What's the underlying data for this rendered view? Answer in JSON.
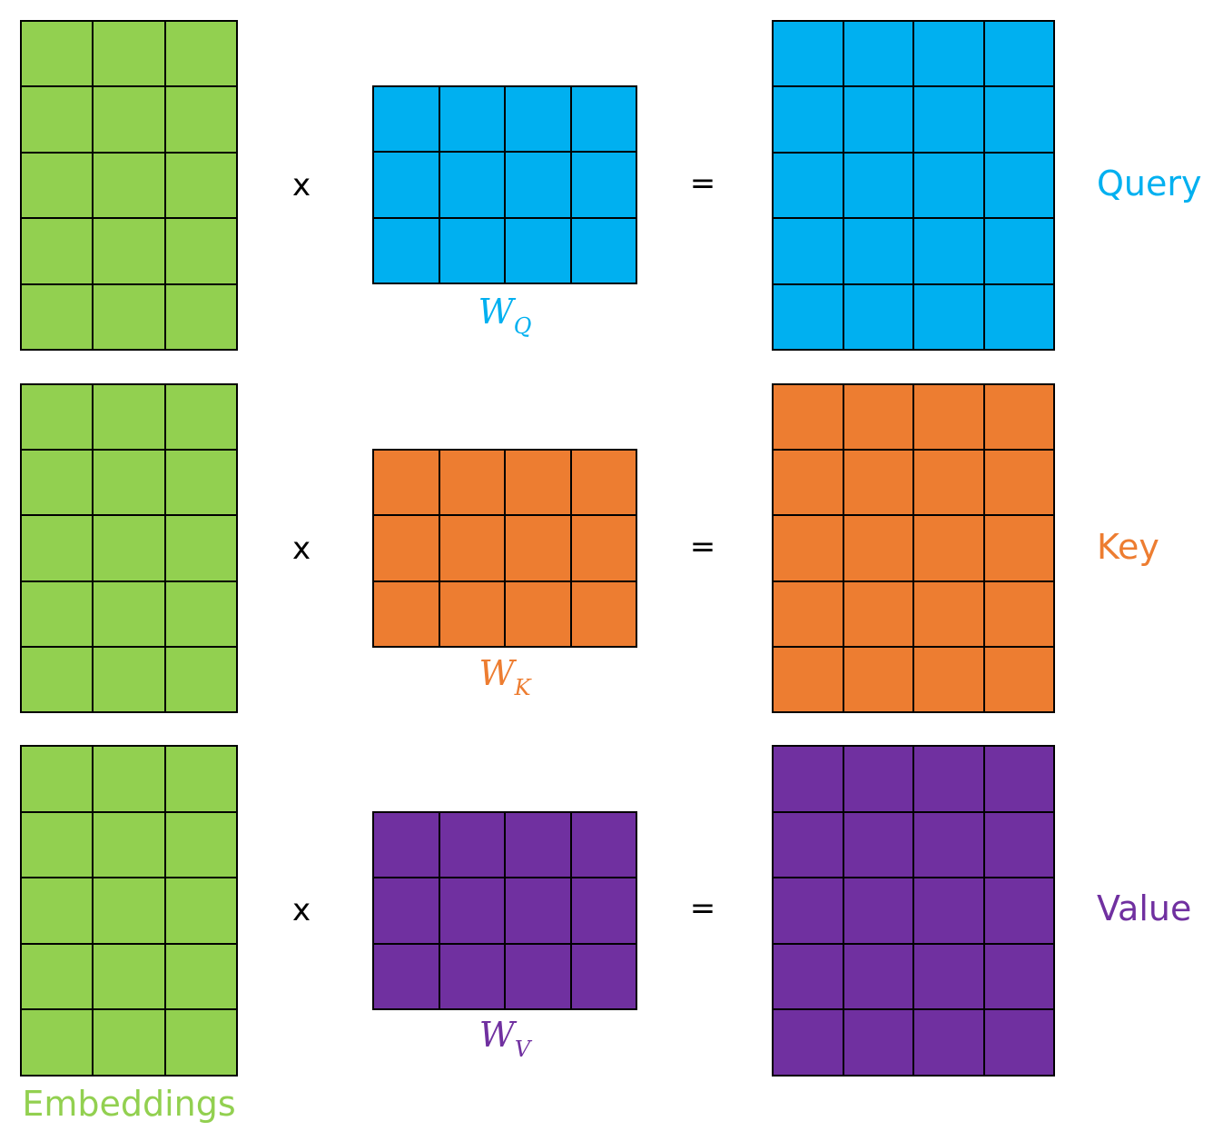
{
  "colors": {
    "embedding": "#92d050",
    "query": "#00b0f0",
    "key": "#ed7d31",
    "value": "#7030a0"
  },
  "embeddings_label": "Embeddings",
  "rows": [
    {
      "id": "query",
      "multiply_symbol": "x",
      "equals_symbol": "=",
      "weight_label_base": "W",
      "weight_label_sub": "Q",
      "output_label": "Query"
    },
    {
      "id": "key",
      "multiply_symbol": "x",
      "equals_symbol": "=",
      "weight_label_base": "W",
      "weight_label_sub": "K",
      "output_label": "Key"
    },
    {
      "id": "value",
      "multiply_symbol": "x",
      "equals_symbol": "=",
      "weight_label_base": "W",
      "weight_label_sub": "V",
      "output_label": "Value"
    }
  ],
  "matrix_shapes": {
    "embedding": {
      "rows": 5,
      "cols": 3
    },
    "weight": {
      "rows": 3,
      "cols": 4
    },
    "output": {
      "rows": 5,
      "cols": 4
    }
  }
}
